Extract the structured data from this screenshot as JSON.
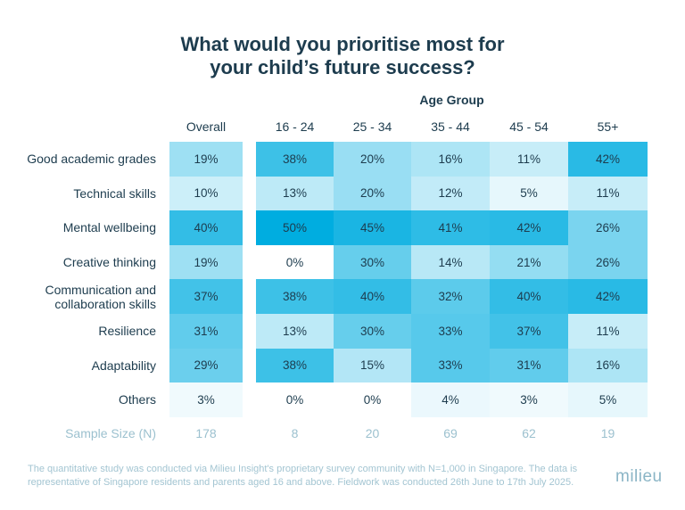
{
  "chart_data": {
    "type": "heatmap",
    "title": "What would you prioritise most for your child’s future success?",
    "title_lines": [
      "What would you prioritise most for",
      "your child’s future success?"
    ],
    "column_group_label": "Age Group",
    "columns": [
      "Overall",
      "16 - 24",
      "25 - 34",
      "35 - 44",
      "45 - 54",
      "55+"
    ],
    "rows": [
      "Good academic grades",
      "Technical skills",
      "Mental wellbeing",
      "Creative thinking",
      "Communication and collaboration skills",
      "Resilience",
      "Adaptability",
      "Others"
    ],
    "row_label_lines": [
      [
        "Good academic grades"
      ],
      [
        "Technical skills"
      ],
      [
        "Mental wellbeing"
      ],
      [
        "Creative thinking"
      ],
      [
        "Communication and",
        "collaboration skills"
      ],
      [
        "Resilience"
      ],
      [
        "Adaptability"
      ],
      [
        "Others"
      ]
    ],
    "values": [
      [
        19,
        38,
        20,
        16,
        11,
        42
      ],
      [
        10,
        13,
        20,
        12,
        5,
        11
      ],
      [
        40,
        50,
        45,
        41,
        42,
        26
      ],
      [
        19,
        0,
        30,
        14,
        21,
        26
      ],
      [
        37,
        38,
        40,
        32,
        40,
        42
      ],
      [
        31,
        13,
        30,
        33,
        37,
        11
      ],
      [
        29,
        38,
        15,
        33,
        31,
        16
      ],
      [
        3,
        0,
        0,
        4,
        3,
        5
      ]
    ],
    "unit": "%",
    "sample_size_label": "Sample Size (N)",
    "sample_sizes": [
      "178",
      "8",
      "20",
      "69",
      "62",
      "19"
    ],
    "color_scale": {
      "low": "#ffffff",
      "high": "#00ade0"
    }
  },
  "footnote": [
    "The quantitative study was conducted via Milieu Insight's proprietary survey community with N=1,000 in Singapore. The data is",
    "representative of Singapore residents and parents aged 16 and above. Fieldwork was conducted 26th June to 17th July 2025."
  ],
  "logo": "milieu"
}
